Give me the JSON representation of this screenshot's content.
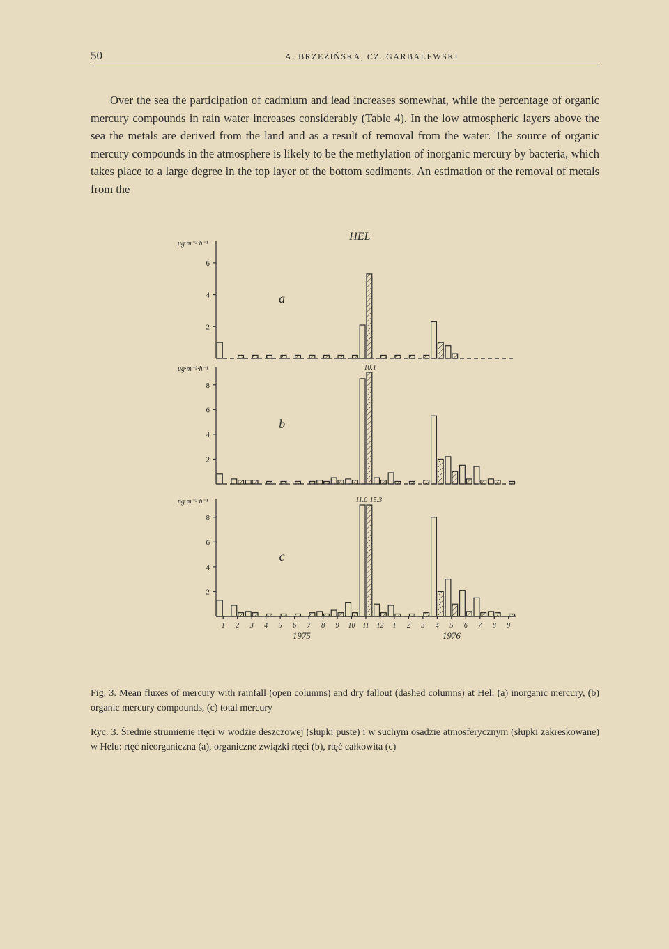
{
  "page": {
    "number": "50",
    "authors": "A. BRZEZIŃSKA, CZ. GARBALEWSKI"
  },
  "paragraph": "Over the sea the participation of cadmium and lead increases somewhat, while the percentage of organic mercury compounds in rain water increases considerably (Table 4). In the low atmospheric layers above the sea the metals are derived from the land and as a result of removal from the water. The source of organic mercury compounds in the atmosphere is likely to be the methylation of inorganic mercury by bacteria, which takes place to a large degree in the top layer of the bottom sediments. An estimation of the removal of metals from the",
  "figure": {
    "title": "HEL",
    "x_categories_1975": [
      "1",
      "2",
      "3",
      "4",
      "5",
      "6",
      "7",
      "8",
      "9",
      "10",
      "11",
      "12"
    ],
    "x_categories_1976": [
      "1",
      "2",
      "3",
      "4",
      "5",
      "6",
      "7",
      "8",
      "9"
    ],
    "year_labels": [
      "1975",
      "1976"
    ],
    "y_axis_labels": {
      "a": "μg·m⁻²·h⁻¹",
      "b": "μg·m⁻²·h⁻¹",
      "c": "ng·m⁻²·h⁻¹"
    },
    "panels": {
      "a": {
        "label": "a",
        "ymax": 7,
        "yticks": [
          2,
          4,
          6
        ],
        "open": [
          1.0,
          0,
          0,
          0,
          0,
          0,
          0,
          0,
          0,
          0,
          2.1,
          0,
          0,
          0,
          0,
          2.3,
          0.8,
          0,
          0,
          0,
          0
        ],
        "dashed": [
          0,
          0.2,
          0.2,
          0.2,
          0.2,
          0.2,
          0.2,
          0.2,
          0.2,
          0.2,
          5.3,
          0.2,
          0.2,
          0.2,
          0.2,
          1.0,
          0.3,
          0,
          0,
          0,
          0
        ]
      },
      "b": {
        "label": "b",
        "ymax": 9,
        "yticks": [
          2,
          4,
          6,
          8
        ],
        "overflow_label": "10.1",
        "open": [
          0.8,
          0.4,
          0.3,
          0,
          0,
          0,
          0,
          0.3,
          0.5,
          0.4,
          8.5,
          0.5,
          0.9,
          0,
          0,
          5.5,
          2.2,
          1.5,
          1.4,
          0.4,
          0
        ],
        "dashed": [
          0,
          0.3,
          0.3,
          0.2,
          0.2,
          0.2,
          0.2,
          0.2,
          0.3,
          0.3,
          9.0,
          0.3,
          0.2,
          0.2,
          0.3,
          2.0,
          1.0,
          0.4,
          0.3,
          0.3,
          0.2
        ]
      },
      "c": {
        "label": "c",
        "ymax": 9,
        "yticks": [
          2,
          4,
          6,
          8
        ],
        "overflow_labels": [
          "11.0",
          "15.3"
        ],
        "open": [
          1.3,
          0.9,
          0.4,
          0,
          0,
          0,
          0,
          0.4,
          0.5,
          1.1,
          9.0,
          1.0,
          0.9,
          0,
          0,
          8.0,
          3.0,
          2.1,
          1.5,
          0.4,
          0
        ],
        "dashed": [
          0,
          0.3,
          0.3,
          0.2,
          0.2,
          0.2,
          0.3,
          0.2,
          0.3,
          0.3,
          9.0,
          0.3,
          0.2,
          0.2,
          0.3,
          2.0,
          1.0,
          0.4,
          0.3,
          0.3,
          0.2
        ]
      }
    },
    "colors": {
      "ink": "#2a2a2a",
      "paper": "#e8dcc0",
      "hatch": "#2a2a2a"
    },
    "stroke_width": 1.2,
    "font_family": "Georgia, serif",
    "axis_font_size": 11,
    "title_font_size": 16
  },
  "caption_en": "Fig. 3. Mean fluxes of mercury with rainfall (open columns) and dry fallout (dashed columns) at Hel: (a) inorganic mercury, (b) organic mercury compounds, (c) total mercury",
  "caption_pl": "Ryc. 3. Średnie strumienie rtęci w wodzie deszczowej (słupki puste) i w suchym osadzie atmosferycznym (słupki zakreskowane) w Helu: rtęć nieorganiczna (a), organiczne związki rtęci (b), rtęć całkowita (c)"
}
